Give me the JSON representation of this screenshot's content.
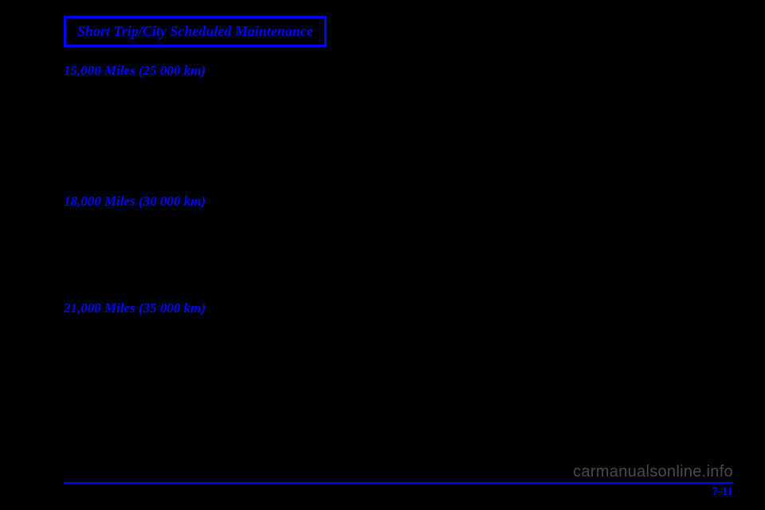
{
  "header": {
    "title": "Short Trip/City Scheduled Maintenance"
  },
  "sections": [
    {
      "heading": "15,000 Miles (25 000 km)"
    },
    {
      "heading": "18,000 Miles (30 000 km)"
    },
    {
      "heading": "21,000 Miles (35 000 km)"
    }
  ],
  "footer": {
    "page_number": "7-11"
  },
  "watermark": "carmanualsonline.info"
}
